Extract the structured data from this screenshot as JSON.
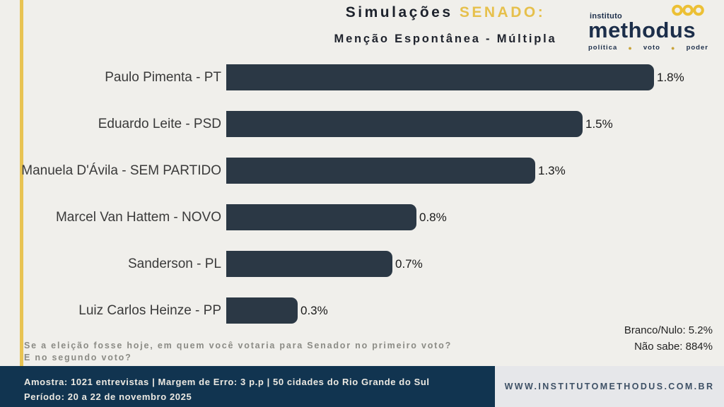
{
  "colors": {
    "background": "#f0efeb",
    "accent_gold": "#e8c352",
    "bar_color": "#2b3845",
    "footer_navy": "#113450",
    "footer_panel": "#e6e7ea",
    "logo_navy": "#1c2e4a"
  },
  "header": {
    "title_main": "Simulações",
    "title_accent": "SENADO:",
    "subtitle": "Menção Espontânea - Múltipla"
  },
  "logo": {
    "top": "instituto",
    "name": "methodus",
    "tagline_words": [
      "política",
      "voto",
      "poder"
    ],
    "icon": "triple-rings-icon"
  },
  "chart_data": {
    "type": "bar",
    "orientation": "horizontal",
    "title": "Simulações SENADO: Menção Espontânea - Múltipla",
    "categories": [
      "Paulo Pimenta - PT",
      "Eduardo Leite - PSD",
      "Manuela D'Ávila - SEM PARTIDO",
      "Marcel Van Hattem - NOVO",
      "Sanderson - PL",
      "Luiz Carlos Heinze - PP"
    ],
    "values": [
      1.8,
      1.5,
      1.3,
      0.8,
      0.7,
      0.3
    ],
    "value_labels": [
      "1.8%",
      "1.5%",
      "1.3%",
      "0.8%",
      "0.7%",
      "0.3%"
    ],
    "unit": "%",
    "xlim": [
      0,
      1.8
    ],
    "grid": false,
    "legend": false,
    "bar_color": "#2b3845"
  },
  "notes": {
    "branco_nulo": "Branco/Nulo: 5.2%",
    "nao_sabe": "Não sabe: 884%"
  },
  "question": {
    "line1": "Se a eleição fosse hoje, em quem você votaria para Senador no primeiro voto?",
    "line2": "E no segundo voto?"
  },
  "footer": {
    "line1": "Amostra: 1021 entrevistas | Margem de Erro: 3 p.p | 50 cidades do Rio Grande do Sul",
    "line2": "Período: 20 a 22 de novembro 2025",
    "website": "WWW.INSTITUTOMETHODUS.COM.BR"
  }
}
